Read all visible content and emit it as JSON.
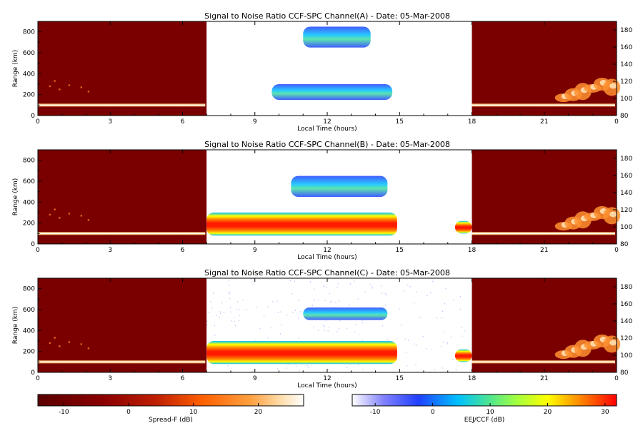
{
  "chart_data": [
    {
      "type": "heatmap",
      "title": "Signal to Noise Ratio CCF-SPC Channel(A) - Date: 05-Mar-2008",
      "xlabel": "Local Time (hours)",
      "ylabel": "Range (km)",
      "xlim": [
        0,
        24
      ],
      "ylim": [
        0,
        900
      ],
      "right_ylim": [
        80,
        190
      ],
      "xticks": [
        "0",
        "3",
        "6",
        "9",
        "12",
        "15",
        "18",
        "21",
        "0"
      ],
      "yticks": [
        "0",
        "200",
        "400",
        "600",
        "800"
      ],
      "right_yticks": [
        "80",
        "100",
        "120",
        "140",
        "160",
        "180"
      ],
      "night_segments": [
        [
          0,
          7
        ],
        [
          18,
          24
        ]
      ],
      "day_segment": [
        7,
        18
      ],
      "day_features": [
        {
          "x": [
            9.7,
            14.7
          ],
          "y": [
            150,
            300
          ],
          "snr_db": [
            -5,
            15
          ]
        },
        {
          "x": [
            11,
            13.8
          ],
          "y": [
            650,
            850
          ],
          "snr_db": [
            -5,
            5
          ]
        }
      ]
    },
    {
      "type": "heatmap",
      "title": "Signal to Noise Ratio CCF-SPC Channel(B) - Date: 05-Mar-2008",
      "xlabel": "Local Time (hours)",
      "ylabel": "Range (km)",
      "xlim": [
        0,
        24
      ],
      "ylim": [
        0,
        900
      ],
      "right_ylim": [
        80,
        190
      ],
      "xticks": [
        "0",
        "3",
        "6",
        "9",
        "12",
        "15",
        "18",
        "21",
        "0"
      ],
      "yticks": [
        "0",
        "200",
        "400",
        "600",
        "800"
      ],
      "right_yticks": [
        "80",
        "100",
        "120",
        "140",
        "160",
        "180"
      ],
      "night_segments": [
        [
          0,
          7
        ],
        [
          18,
          24
        ]
      ],
      "day_segment": [
        7,
        18
      ],
      "day_features": [
        {
          "x": [
            7,
            14.9
          ],
          "y": [
            80,
            300
          ],
          "snr_db": [
            0,
            30
          ]
        },
        {
          "x": [
            17.3,
            18
          ],
          "y": [
            100,
            220
          ],
          "snr_db": [
            10,
            30
          ]
        },
        {
          "x": [
            10.5,
            14.5
          ],
          "y": [
            450,
            650
          ],
          "snr_db": [
            -5,
            10
          ]
        }
      ]
    },
    {
      "type": "heatmap",
      "title": "Signal to Noise Ratio CCF-SPC Channel(C) - Date: 05-Mar-2008",
      "xlabel": "Local Time (hours)",
      "ylabel": "Range (km)",
      "xlim": [
        0,
        24
      ],
      "ylim": [
        0,
        900
      ],
      "right_ylim": [
        80,
        190
      ],
      "xticks": [
        "0",
        "3",
        "6",
        "9",
        "12",
        "15",
        "18",
        "21",
        "0"
      ],
      "yticks": [
        "0",
        "200",
        "400",
        "600",
        "800"
      ],
      "right_yticks": [
        "80",
        "100",
        "120",
        "140",
        "160",
        "180"
      ],
      "night_segments": [
        [
          0,
          7
        ],
        [
          18,
          24
        ]
      ],
      "day_segment": [
        7,
        18
      ],
      "day_features": [
        {
          "x": [
            7,
            14.9
          ],
          "y": [
            80,
            300
          ],
          "snr_db": [
            0,
            30
          ]
        },
        {
          "x": [
            17.3,
            18
          ],
          "y": [
            100,
            220
          ],
          "snr_db": [
            10,
            30
          ]
        },
        {
          "x": [
            11,
            14.5
          ],
          "y": [
            500,
            620
          ],
          "snr_db": [
            -5,
            5
          ]
        }
      ]
    }
  ],
  "colorbars": [
    {
      "label": "Spread-F (dB)",
      "ticks": [
        "-10",
        "0",
        "10",
        "20"
      ],
      "range": [
        -14,
        27
      ]
    },
    {
      "label": "EEJ/CCF (dB)",
      "ticks": [
        "-10",
        "0",
        "10",
        "20",
        "30"
      ],
      "range": [
        -14,
        32
      ]
    }
  ],
  "colors": {
    "night_background": "#7a0000",
    "spreadf_scale": [
      "#5a0000",
      "#8b0000",
      "#c02000",
      "#ff6000",
      "#ffa040",
      "#ffe0b0",
      "#ffffff"
    ],
    "eej_scale": [
      "#ffffff",
      "#8080ff",
      "#2040ff",
      "#00c0ff",
      "#40e0a0",
      "#a0ff40",
      "#ffff00",
      "#ff8000",
      "#ff0000"
    ]
  }
}
